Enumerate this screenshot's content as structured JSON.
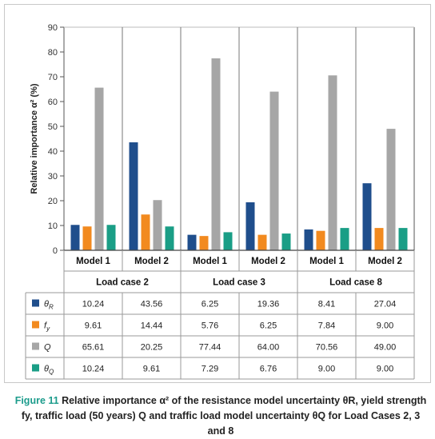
{
  "chart_data": {
    "type": "bar",
    "ylabel": "Relative importance α² (%)",
    "ylim": [
      0,
      90
    ],
    "yticks": [
      0,
      10,
      20,
      30,
      40,
      50,
      60,
      70,
      80,
      90
    ],
    "grid": "vertical group separators",
    "groups": [
      {
        "label": "Load case 2",
        "models": [
          "Model 1",
          "Model 2"
        ]
      },
      {
        "label": "Load case 3",
        "models": [
          "Model 1",
          "Model 2"
        ]
      },
      {
        "label": "Load case 8",
        "models": [
          "Model 1",
          "Model 2"
        ]
      }
    ],
    "series": [
      {
        "name": "θR",
        "base": "θ",
        "sub": "R",
        "sup": "",
        "italic": true,
        "color": "#1f4e8c",
        "values": [
          10.24,
          43.56,
          6.25,
          19.36,
          8.41,
          27.04
        ],
        "labels": [
          "10.24",
          "43.56",
          "6.25",
          "19.36",
          "8.41",
          "27.04"
        ]
      },
      {
        "name": "fy",
        "base": "f",
        "sub": "y",
        "sup": "",
        "italic": true,
        "color": "#f28a1f",
        "values": [
          9.61,
          14.44,
          5.76,
          6.25,
          7.84,
          9.0
        ],
        "labels": [
          "9.61",
          "14.44",
          "5.76",
          "6.25",
          "7.84",
          "9.00"
        ]
      },
      {
        "name": "Q",
        "base": "Q",
        "sub": "",
        "sup": "",
        "italic": true,
        "color": "#a6a6a6",
        "values": [
          65.61,
          20.25,
          77.44,
          64.0,
          70.56,
          49.0
        ],
        "labels": [
          "65.61",
          "20.25",
          "77.44",
          "64.00",
          "70.56",
          "49.00"
        ]
      },
      {
        "name": "θQ",
        "base": "θ",
        "sub": "Q",
        "sup": "",
        "italic": true,
        "color": "#1a9e86",
        "values": [
          10.24,
          9.61,
          7.29,
          6.76,
          9.0,
          9.0
        ],
        "labels": [
          "10.24",
          "9.61",
          "7.29",
          "6.76",
          "9.00",
          "9.00"
        ]
      }
    ]
  },
  "caption": {
    "figure_label": "Figure 11",
    "text": " Relative importance α² of the resistance model uncertainty θR, yield strength fy, traffic load (50 years) Q and traffic load model uncertainty θQ for Load Cases 2, 3 and 8"
  }
}
